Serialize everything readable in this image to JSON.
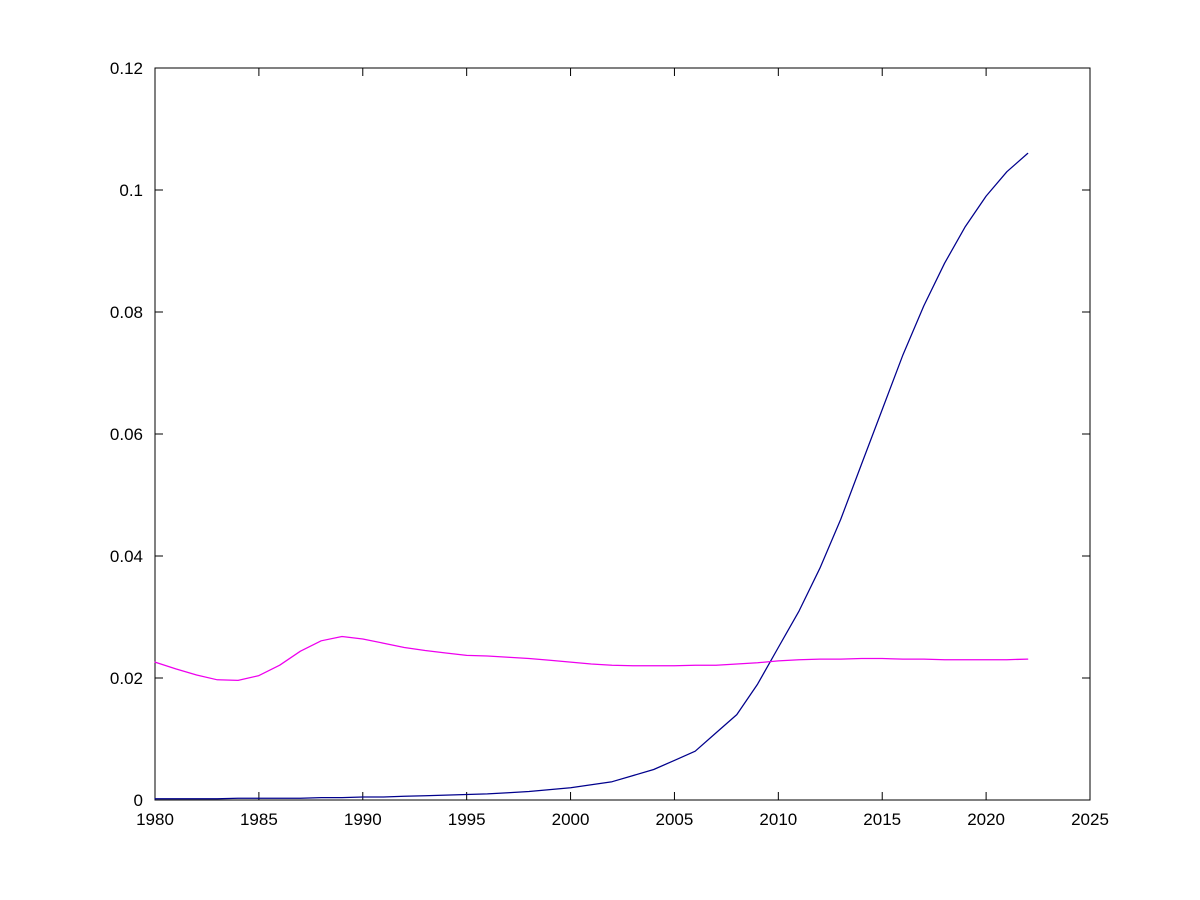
{
  "figure": {
    "background_color": "#ffffff",
    "axis_color": "#000000"
  },
  "chart_data": {
    "type": "line",
    "title": "",
    "xlabel": "",
    "ylabel": "",
    "grid": false,
    "legend": "none",
    "xlim": [
      1980,
      2025
    ],
    "ylim": [
      0,
      0.12
    ],
    "x_ticks": [
      1980,
      1985,
      1990,
      1995,
      2000,
      2005,
      2010,
      2015,
      2020,
      2025
    ],
    "x_tick_labels": [
      "1980",
      "1985",
      "1990",
      "1995",
      "2000",
      "2005",
      "2010",
      "2015",
      "2020",
      "2025"
    ],
    "y_ticks": [
      0,
      0.02,
      0.04,
      0.06,
      0.08,
      0.1,
      0.12
    ],
    "y_tick_labels": [
      "0",
      "0.02",
      "0.04",
      "0.06",
      "0.08",
      "0.1",
      "0.12"
    ],
    "x": [
      1980,
      1981,
      1982,
      1983,
      1984,
      1985,
      1986,
      1987,
      1988,
      1989,
      1990,
      1991,
      1992,
      1993,
      1994,
      1995,
      1996,
      1997,
      1998,
      1999,
      2000,
      2001,
      2002,
      2003,
      2004,
      2005,
      2006,
      2007,
      2008,
      2009,
      2010,
      2011,
      2012,
      2013,
      2014,
      2015,
      2016,
      2017,
      2018,
      2019,
      2020,
      2021,
      2022
    ],
    "series": [
      {
        "name": "blue",
        "color": "#00008c",
        "values": [
          0.0002,
          0.0002,
          0.0002,
          0.0002,
          0.0003,
          0.0003,
          0.0003,
          0.0003,
          0.0004,
          0.0004,
          0.0005,
          0.0005,
          0.0006,
          0.0007,
          0.0008,
          0.0009,
          0.001,
          0.0012,
          0.0014,
          0.0017,
          0.002,
          0.0025,
          0.003,
          0.004,
          0.005,
          0.0065,
          0.008,
          0.011,
          0.014,
          0.019,
          0.025,
          0.031,
          0.038,
          0.046,
          0.055,
          0.064,
          0.073,
          0.081,
          0.088,
          0.094,
          0.099,
          0.103,
          0.106
        ]
      },
      {
        "name": "magenta",
        "color": "#ee00ee",
        "values": [
          0.0226,
          0.0215,
          0.0205,
          0.0197,
          0.0196,
          0.0204,
          0.0221,
          0.0244,
          0.0261,
          0.0268,
          0.0264,
          0.0257,
          0.025,
          0.0245,
          0.0241,
          0.0237,
          0.0236,
          0.0234,
          0.0232,
          0.0229,
          0.0226,
          0.0223,
          0.0221,
          0.022,
          0.022,
          0.022,
          0.0221,
          0.0221,
          0.0223,
          0.0225,
          0.0228,
          0.023,
          0.0231,
          0.0231,
          0.0232,
          0.0232,
          0.0231,
          0.0231,
          0.023,
          0.023,
          0.023,
          0.023,
          0.0231
        ]
      }
    ]
  }
}
